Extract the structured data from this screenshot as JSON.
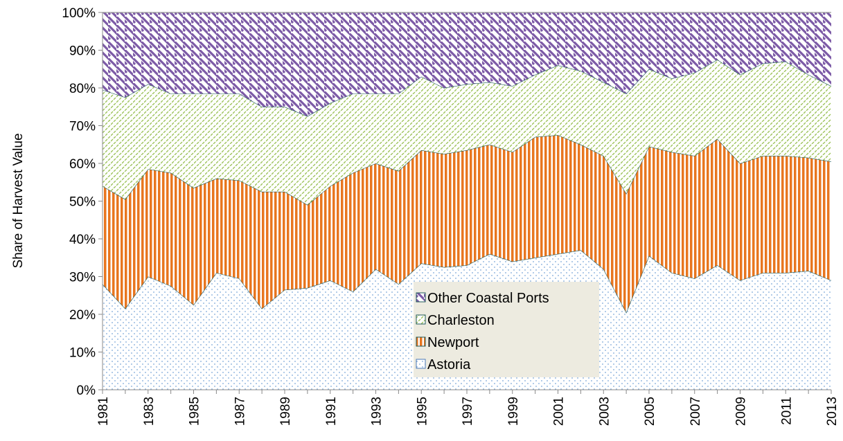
{
  "chart_data": {
    "type": "stacked_area",
    "y_label": "Share of Harvest  Value",
    "x": [
      1981,
      1982,
      1983,
      1984,
      1985,
      1986,
      1987,
      1988,
      1989,
      1990,
      1991,
      1992,
      1993,
      1994,
      1995,
      1996,
      1997,
      1998,
      1999,
      2000,
      2001,
      2002,
      2003,
      2004,
      2005,
      2006,
      2007,
      2008,
      2009,
      2010,
      2011,
      2012,
      2013
    ],
    "xlim": [
      1981,
      2013
    ],
    "xticks": [
      1981,
      1983,
      1985,
      1987,
      1989,
      1991,
      1993,
      1995,
      1997,
      1999,
      2001,
      2003,
      2005,
      2007,
      2009,
      2011,
      2013
    ],
    "ylim": [
      0,
      100
    ],
    "yticks": [
      {
        "value": 0,
        "label": "0%"
      },
      {
        "value": 10,
        "label": "10%"
      },
      {
        "value": 20,
        "label": "20%"
      },
      {
        "value": 30,
        "label": "30%"
      },
      {
        "value": 40,
        "label": "40%"
      },
      {
        "value": 50,
        "label": "50%"
      },
      {
        "value": 60,
        "label": "60%"
      },
      {
        "value": 70,
        "label": "70%"
      },
      {
        "value": 80,
        "label": "80%"
      },
      {
        "value": 90,
        "label": "90%"
      },
      {
        "value": 100,
        "label": "100%"
      }
    ],
    "series": [
      {
        "name": "Astoria",
        "color": "#7aa6d8",
        "values": [
          28,
          21.5,
          30,
          27.5,
          22.5,
          31,
          29.5,
          21.5,
          26.5,
          27,
          29,
          26,
          32,
          28,
          33.5,
          32.5,
          33,
          36,
          34,
          35,
          36,
          37,
          32,
          20.5,
          35.5,
          31,
          29.5,
          33,
          29,
          31,
          31,
          31.5,
          29
        ]
      },
      {
        "name": "Newport",
        "color": "#e8761f",
        "values": [
          26,
          29,
          28.5,
          30,
          31,
          25,
          26,
          31,
          26,
          22,
          25,
          31.5,
          28,
          30,
          30,
          30,
          30.5,
          29,
          29,
          32,
          31.5,
          28,
          30,
          31.5,
          29,
          32,
          32.5,
          33.5,
          31,
          31,
          31,
          30,
          31.5
        ]
      },
      {
        "name": "Charleston",
        "color": "#9cc25a",
        "values": [
          25.5,
          27,
          22.5,
          21,
          25,
          22.5,
          23,
          22.5,
          22.5,
          23.5,
          22,
          21,
          18.5,
          20.5,
          19.5,
          17.5,
          17.5,
          16.5,
          17.5,
          16.5,
          18.5,
          19.5,
          19.5,
          26.5,
          20.5,
          19.5,
          22,
          21,
          23.5,
          24.5,
          25,
          22,
          20
        ]
      },
      {
        "name": "Other Coastal Ports",
        "color": "#7c5aa6",
        "values": [
          20.5,
          22.5,
          19,
          21.5,
          21.5,
          21.5,
          21.5,
          25,
          25,
          27.5,
          24,
          21.5,
          21.5,
          21.5,
          17,
          20,
          19,
          18.5,
          19.5,
          16.5,
          14,
          15.5,
          18.5,
          21.5,
          15,
          17.5,
          16,
          12.5,
          16.5,
          13.5,
          13,
          16.5,
          19.5
        ]
      }
    ]
  }
}
